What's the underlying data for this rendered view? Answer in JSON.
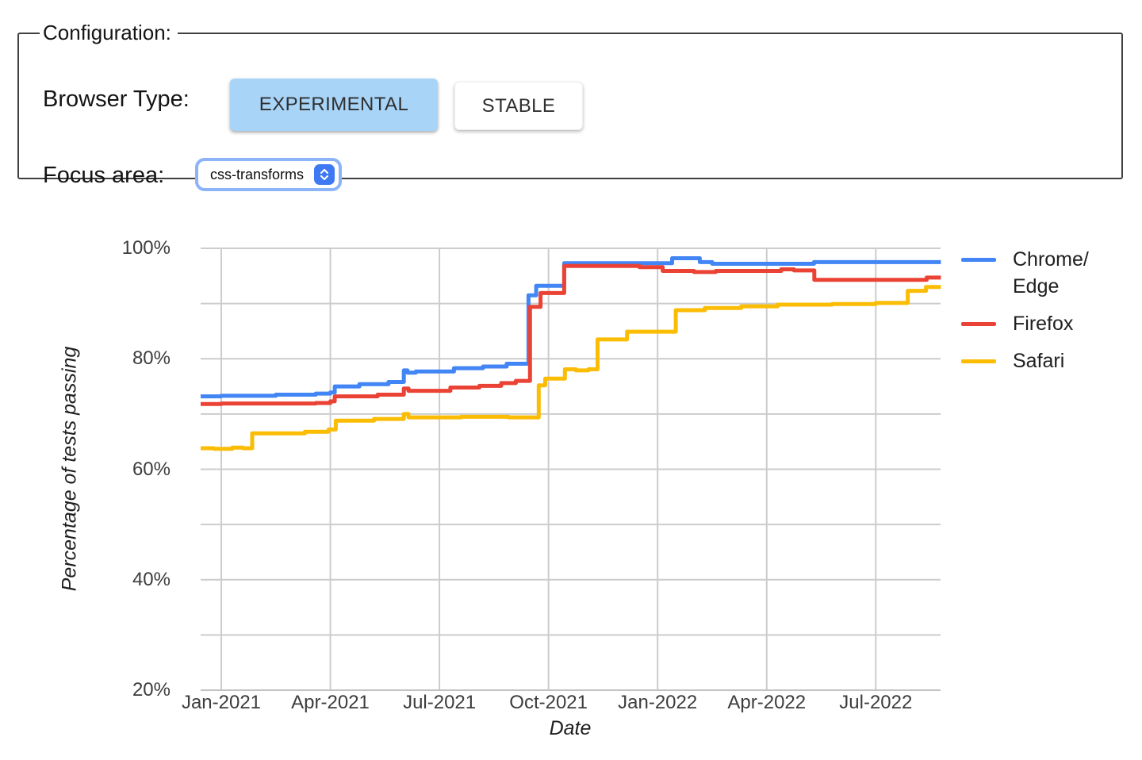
{
  "config": {
    "legend": "Configuration:",
    "browser_type_label": "Browser Type:",
    "buttons": [
      {
        "label": "EXPERIMENTAL",
        "selected": true
      },
      {
        "label": "STABLE",
        "selected": false
      }
    ],
    "focus_area_label": "Focus area:",
    "focus_area_value": "css-transforms",
    "select_stepper_icon": "up-down-chevrons",
    "selected_button_color": "#a8d4f8",
    "select_focus_ring_color": "#8db3f8",
    "stepper_color": "#3e78f2"
  },
  "chart_data": {
    "type": "line",
    "stepped": true,
    "title": "",
    "xlabel": "Date",
    "ylabel": "Percentage of tests passing",
    "x_tick_labels": [
      "Jan-2021",
      "Apr-2021",
      "Jul-2021",
      "Oct-2021",
      "Jan-2022",
      "Apr-2022",
      "Jul-2022"
    ],
    "x_tick_months": [
      0,
      3,
      6,
      9,
      12,
      15,
      18
    ],
    "y_tick_labels": [
      "100%",
      "80%",
      "60%",
      "40%",
      "20%"
    ],
    "y_ticks": [
      100,
      80,
      60,
      40,
      20
    ],
    "y_gridlines": [
      100,
      90,
      80,
      70,
      60,
      50,
      40,
      30,
      20
    ],
    "ylim": [
      20,
      100
    ],
    "xlim_months": [
      -0.57,
      19.79
    ],
    "grid_on": true,
    "grid_color": "#cccccc",
    "axis_line_color": "#c2c2c2",
    "legend_position": "right",
    "x_unit": "months since Jan-2021",
    "series": [
      {
        "name": "Chrome/Edge",
        "legend_lines": [
          "Chrome/",
          "Edge"
        ],
        "color": "#4285F4",
        "points": [
          [
            -0.57,
            73.2
          ],
          [
            0,
            73.3
          ],
          [
            1.5,
            73.5
          ],
          [
            2.6,
            73.7
          ],
          [
            3.0,
            73.9
          ],
          [
            3.12,
            75.0
          ],
          [
            3.8,
            75.4
          ],
          [
            4.6,
            75.8
          ],
          [
            5.02,
            77.9
          ],
          [
            5.12,
            77.5
          ],
          [
            5.35,
            77.7
          ],
          [
            6.4,
            78.3
          ],
          [
            7.2,
            78.6
          ],
          [
            7.85,
            79.1
          ],
          [
            8.45,
            91.5
          ],
          [
            8.66,
            93.2
          ],
          [
            9.43,
            97.3
          ],
          [
            12.4,
            98.2
          ],
          [
            13.16,
            97.5
          ],
          [
            13.5,
            97.2
          ],
          [
            16.3,
            97.5
          ],
          [
            19.79,
            97.5
          ]
        ]
      },
      {
        "name": "Firefox",
        "legend_lines": [
          "Firefox"
        ],
        "color": "#EA4335",
        "points": [
          [
            -0.57,
            71.8
          ],
          [
            0,
            71.9
          ],
          [
            2.6,
            72.0
          ],
          [
            3.0,
            72.3
          ],
          [
            3.12,
            73.2
          ],
          [
            4.3,
            73.5
          ],
          [
            5.02,
            74.6
          ],
          [
            5.15,
            74.2
          ],
          [
            6.3,
            74.8
          ],
          [
            7.1,
            75.1
          ],
          [
            7.7,
            75.6
          ],
          [
            8.1,
            76.0
          ],
          [
            8.49,
            89.4
          ],
          [
            8.78,
            91.9
          ],
          [
            9.43,
            96.8
          ],
          [
            11.5,
            96.6
          ],
          [
            12.14,
            95.9
          ],
          [
            13.0,
            95.7
          ],
          [
            13.6,
            95.9
          ],
          [
            15.4,
            96.2
          ],
          [
            15.75,
            96.0
          ],
          [
            16.31,
            94.3
          ],
          [
            19.4,
            94.7
          ],
          [
            19.79,
            94.7
          ]
        ]
      },
      {
        "name": "Safari",
        "legend_lines": [
          "Safari"
        ],
        "color": "#FBBC04",
        "points": [
          [
            -0.57,
            63.8
          ],
          [
            -0.2,
            63.7
          ],
          [
            0.3,
            63.9
          ],
          [
            0.6,
            63.8
          ],
          [
            0.85,
            66.5
          ],
          [
            2.3,
            66.8
          ],
          [
            2.95,
            67.2
          ],
          [
            3.15,
            68.8
          ],
          [
            4.2,
            69.1
          ],
          [
            5.02,
            70.0
          ],
          [
            5.15,
            69.4
          ],
          [
            6.6,
            69.5
          ],
          [
            7.9,
            69.4
          ],
          [
            8.73,
            75.2
          ],
          [
            8.91,
            76.4
          ],
          [
            9.45,
            78.1
          ],
          [
            9.75,
            77.9
          ],
          [
            10.1,
            78.1
          ],
          [
            10.35,
            83.5
          ],
          [
            11.16,
            84.9
          ],
          [
            12.5,
            88.8
          ],
          [
            13.3,
            89.2
          ],
          [
            14.3,
            89.5
          ],
          [
            15.3,
            89.8
          ],
          [
            16.8,
            89.9
          ],
          [
            18.0,
            90.1
          ],
          [
            18.88,
            92.3
          ],
          [
            19.38,
            93.0
          ],
          [
            19.79,
            93.0
          ]
        ]
      }
    ]
  }
}
